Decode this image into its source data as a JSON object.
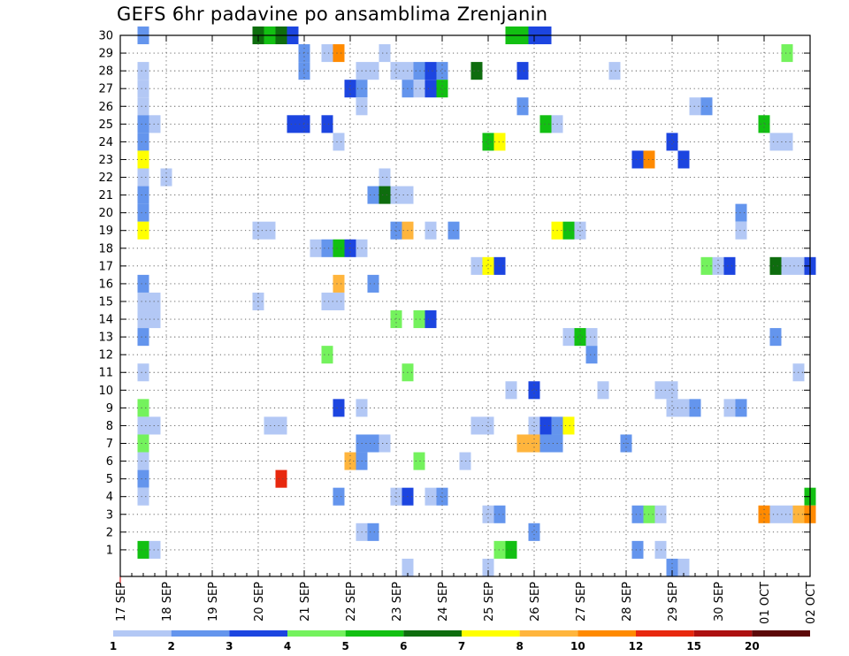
{
  "chart_data": {
    "type": "heatmap",
    "title": "GEFS 6hr padavine po ansamblima Zrenjanin",
    "xlabel": "",
    "ylabel": "",
    "x_ticks": [
      "17 SEP",
      "18 SEP",
      "19 SEP",
      "20 SEP",
      "21 SEP",
      "22 SEP",
      "23 SEP",
      "24 SEP",
      "25 SEP",
      "26 SEP",
      "27 SEP",
      "28 SEP",
      "29 SEP",
      "30 SEP",
      "01 OCT",
      "02 OCT"
    ],
    "y_ticks": [
      1,
      2,
      3,
      4,
      5,
      6,
      7,
      8,
      9,
      10,
      11,
      12,
      13,
      14,
      15,
      16,
      17,
      18,
      19,
      20,
      21,
      22,
      23,
      24,
      25,
      26,
      27,
      28,
      29,
      30
    ],
    "x_range_steps": [
      0,
      60
    ],
    "y_range": [
      0,
      30
    ],
    "grid": true,
    "step_hours": 6,
    "colorbar": {
      "labels": [
        "1",
        "2",
        "3",
        "4",
        "5",
        "6",
        "7",
        "8",
        "10",
        "12",
        "15",
        "20"
      ],
      "colors": [
        "#b3c8f5",
        "#6495ed",
        "#1c45e0",
        "#74f25d",
        "#12c012",
        "#0e6d0e",
        "#ffff00",
        "#ffb53d",
        "#ff8a00",
        "#e8280e",
        "#ad1010",
        "#5c0808"
      ]
    },
    "cells": [
      [
        30,
        2,
        1,
        0
      ],
      [
        30,
        12,
        5,
        0
      ],
      [
        30,
        13,
        4,
        0
      ],
      [
        30,
        14,
        5,
        0
      ],
      [
        30,
        15,
        2,
        0
      ],
      [
        30,
        34,
        4,
        0
      ],
      [
        30,
        35,
        4,
        0
      ],
      [
        30,
        36,
        2,
        0
      ],
      [
        30,
        37,
        2,
        0
      ],
      [
        29,
        16,
        1,
        0
      ],
      [
        29,
        18,
        0,
        0
      ],
      [
        29,
        19,
        8,
        0
      ],
      [
        29,
        23,
        0,
        0
      ],
      [
        29,
        58,
        3,
        0
      ],
      [
        28,
        2,
        0,
        0
      ],
      [
        28,
        16,
        1,
        0
      ],
      [
        28,
        21,
        0,
        0
      ],
      [
        28,
        22,
        0,
        0
      ],
      [
        28,
        24,
        0,
        0
      ],
      [
        28,
        25,
        0,
        0
      ],
      [
        28,
        26,
        1,
        0
      ],
      [
        28,
        27,
        2,
        0
      ],
      [
        28,
        28,
        1,
        0
      ],
      [
        28,
        31,
        5,
        0
      ],
      [
        28,
        35,
        2,
        0
      ],
      [
        28,
        43,
        0,
        0
      ],
      [
        27,
        2,
        0,
        0
      ],
      [
        27,
        20,
        2,
        0
      ],
      [
        27,
        21,
        1,
        0
      ],
      [
        27,
        25,
        1,
        0
      ],
      [
        27,
        26,
        0,
        0
      ],
      [
        27,
        27,
        2,
        0
      ],
      [
        27,
        28,
        4,
        0
      ],
      [
        26,
        2,
        0,
        0
      ],
      [
        26,
        21,
        0,
        0
      ],
      [
        26,
        35,
        1,
        0
      ],
      [
        26,
        50,
        0,
        0
      ],
      [
        26,
        51,
        1,
        0
      ],
      [
        25,
        2,
        1,
        0
      ],
      [
        25,
        3,
        0,
        0
      ],
      [
        25,
        15,
        2,
        0
      ],
      [
        25,
        16,
        2,
        0
      ],
      [
        25,
        18,
        2,
        0
      ],
      [
        25,
        37,
        4,
        0
      ],
      [
        25,
        38,
        0,
        0
      ],
      [
        25,
        56,
        4,
        0
      ],
      [
        24,
        2,
        1,
        0
      ],
      [
        24,
        19,
        0,
        0
      ],
      [
        24,
        32,
        4,
        0
      ],
      [
        24,
        33,
        6,
        0
      ],
      [
        24,
        48,
        2,
        0
      ],
      [
        24,
        57,
        0,
        0
      ],
      [
        24,
        58,
        0,
        0
      ],
      [
        23,
        2,
        6,
        0
      ],
      [
        23,
        45,
        2,
        0
      ],
      [
        23,
        46,
        8,
        0
      ],
      [
        23,
        49,
        2,
        0
      ],
      [
        22,
        2,
        0,
        0
      ],
      [
        22,
        4,
        0,
        0
      ],
      [
        22,
        23,
        0,
        0
      ],
      [
        21,
        2,
        1,
        0
      ],
      [
        21,
        22,
        1,
        0
      ],
      [
        21,
        23,
        5,
        0
      ],
      [
        21,
        24,
        0,
        0
      ],
      [
        21,
        25,
        0,
        0
      ],
      [
        20,
        2,
        1,
        0
      ],
      [
        20,
        54,
        1,
        0
      ],
      [
        19,
        2,
        6,
        0
      ],
      [
        19,
        12,
        0,
        0
      ],
      [
        19,
        13,
        0,
        0
      ],
      [
        19,
        24,
        1,
        0
      ],
      [
        19,
        25,
        7,
        0
      ],
      [
        19,
        27,
        0,
        0
      ],
      [
        19,
        29,
        1,
        0
      ],
      [
        19,
        38,
        6,
        0
      ],
      [
        19,
        39,
        4,
        0
      ],
      [
        19,
        40,
        0,
        0
      ],
      [
        19,
        54,
        0,
        0
      ],
      [
        18,
        17,
        0,
        0
      ],
      [
        18,
        18,
        1,
        0
      ],
      [
        18,
        19,
        4,
        0
      ],
      [
        18,
        20,
        2,
        0
      ],
      [
        18,
        21,
        0,
        0
      ],
      [
        17,
        31,
        0,
        0
      ],
      [
        17,
        32,
        6,
        0
      ],
      [
        17,
        33,
        2,
        0
      ],
      [
        17,
        51,
        3,
        0
      ],
      [
        17,
        52,
        0,
        0
      ],
      [
        17,
        53,
        2,
        0
      ],
      [
        17,
        57,
        5,
        0
      ],
      [
        17,
        58,
        0,
        0
      ],
      [
        17,
        59,
        0,
        0
      ],
      [
        17,
        60,
        2,
        0
      ],
      [
        16,
        2,
        1,
        0
      ],
      [
        16,
        19,
        7,
        0
      ],
      [
        16,
        22,
        1,
        0
      ],
      [
        15,
        2,
        1,
        0
      ],
      [
        15,
        12,
        0,
        0
      ],
      [
        15,
        18,
        0,
        0
      ],
      [
        15,
        19,
        0,
        0
      ],
      [
        15,
        2,
        0,
        0
      ],
      [
        15,
        3,
        0,
        0
      ],
      [
        14,
        2,
        0,
        0
      ],
      [
        14,
        3,
        0,
        0
      ],
      [
        14,
        24,
        3,
        0
      ],
      [
        14,
        26,
        3,
        0
      ],
      [
        14,
        27,
        2,
        0
      ],
      [
        13,
        2,
        1,
        0
      ],
      [
        13,
        39,
        0,
        0
      ],
      [
        13,
        40,
        4,
        0
      ],
      [
        13,
        41,
        0,
        0
      ],
      [
        13,
        57,
        1,
        0
      ],
      [
        12,
        18,
        3,
        0
      ],
      [
        12,
        41,
        1,
        0
      ],
      [
        11,
        2,
        0,
        0
      ],
      [
        11,
        25,
        3,
        0
      ],
      [
        11,
        59,
        0,
        0
      ],
      [
        10,
        34,
        0,
        0
      ],
      [
        10,
        36,
        2,
        0
      ],
      [
        10,
        42,
        0,
        0
      ],
      [
        10,
        47,
        0,
        0
      ],
      [
        10,
        48,
        0,
        0
      ],
      [
        9,
        2,
        3,
        0
      ],
      [
        9,
        19,
        2,
        0
      ],
      [
        9,
        21,
        0,
        0
      ],
      [
        9,
        48,
        0,
        0
      ],
      [
        9,
        49,
        0,
        0
      ],
      [
        9,
        50,
        1,
        0
      ],
      [
        9,
        53,
        0,
        0
      ],
      [
        9,
        54,
        1,
        0
      ],
      [
        8,
        2,
        0,
        0
      ],
      [
        8,
        3,
        0,
        0
      ],
      [
        8,
        13,
        0,
        0
      ],
      [
        8,
        14,
        0,
        0
      ],
      [
        8,
        31,
        0,
        0
      ],
      [
        8,
        32,
        0,
        0
      ],
      [
        8,
        36,
        0,
        0
      ],
      [
        8,
        37,
        2,
        0
      ],
      [
        8,
        38,
        1,
        0
      ],
      [
        8,
        39,
        6,
        0
      ],
      [
        7,
        2,
        3,
        0
      ],
      [
        7,
        21,
        1,
        0
      ],
      [
        7,
        22,
        1,
        0
      ],
      [
        7,
        23,
        0,
        0
      ],
      [
        7,
        35,
        7,
        0
      ],
      [
        7,
        36,
        7,
        0
      ],
      [
        7,
        37,
        1,
        0
      ],
      [
        7,
        38,
        1,
        0
      ],
      [
        7,
        44,
        1,
        0
      ],
      [
        6,
        2,
        0,
        0
      ],
      [
        6,
        20,
        7,
        0
      ],
      [
        6,
        21,
        1,
        0
      ],
      [
        6,
        26,
        3,
        0
      ],
      [
        6,
        30,
        0,
        0
      ],
      [
        5,
        2,
        1,
        0
      ],
      [
        5,
        14,
        9,
        0
      ],
      [
        4,
        2,
        0,
        0
      ],
      [
        4,
        19,
        1,
        0
      ],
      [
        4,
        24,
        0,
        0
      ],
      [
        4,
        25,
        2,
        0
      ],
      [
        4,
        27,
        0,
        0
      ],
      [
        4,
        28,
        1,
        0
      ],
      [
        4,
        60,
        4,
        0
      ],
      [
        3,
        32,
        0,
        0
      ],
      [
        3,
        33,
        1,
        0
      ],
      [
        3,
        45,
        1,
        0
      ],
      [
        3,
        46,
        3,
        0
      ],
      [
        3,
        47,
        0,
        0
      ],
      [
        3,
        56,
        8,
        0
      ],
      [
        3,
        57,
        0,
        0
      ],
      [
        3,
        58,
        0,
        0
      ],
      [
        3,
        59,
        7,
        0
      ],
      [
        3,
        60,
        8,
        0
      ],
      [
        2,
        21,
        0,
        0
      ],
      [
        2,
        22,
        1,
        0
      ],
      [
        2,
        36,
        1,
        0
      ],
      [
        1,
        2,
        4,
        0
      ],
      [
        1,
        3,
        0,
        0
      ],
      [
        1,
        33,
        3,
        0
      ],
      [
        1,
        34,
        4,
        0
      ],
      [
        1,
        45,
        1,
        0
      ],
      [
        1,
        47,
        0,
        0
      ],
      [
        0,
        25,
        0,
        0
      ],
      [
        0,
        32,
        0,
        0
      ],
      [
        0,
        48,
        1,
        0
      ],
      [
        0,
        49,
        0,
        0
      ]
    ]
  }
}
